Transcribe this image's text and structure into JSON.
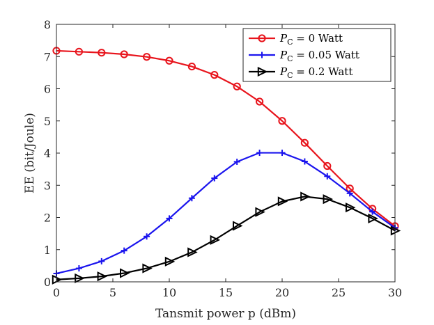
{
  "chart_data": {
    "type": "line",
    "title": "",
    "xlabel": "Tansmit power p (dBm)",
    "ylabel": "EE (bit/Joule)",
    "xlim": [
      0,
      30
    ],
    "ylim": [
      0,
      8
    ],
    "xticks": [
      0,
      5,
      10,
      15,
      20,
      25,
      30
    ],
    "yticks": [
      0,
      1,
      2,
      3,
      4,
      5,
      6,
      7,
      8
    ],
    "grid": false,
    "legend_position": "top-right",
    "x": [
      0,
      2,
      4,
      6,
      8,
      10,
      12,
      14,
      16,
      18,
      20,
      22,
      24,
      26,
      28,
      30
    ],
    "series": [
      {
        "name": "P_C = 0 Watt",
        "legend_label": "P C = 0 Watt",
        "color": "#e8141c",
        "marker": "circle",
        "values": [
          7.18,
          7.15,
          7.12,
          7.07,
          6.99,
          6.87,
          6.69,
          6.43,
          6.07,
          5.6,
          5.0,
          4.32,
          3.6,
          2.9,
          2.27,
          1.73
        ]
      },
      {
        "name": "P_C = 0.05 Watt",
        "legend_label": "P C = 0.05 Watt",
        "color": "#1a14ee",
        "marker": "plus",
        "values": [
          0.26,
          0.42,
          0.64,
          0.97,
          1.41,
          1.97,
          2.6,
          3.22,
          3.73,
          4.01,
          4.01,
          3.74,
          3.28,
          2.75,
          2.18,
          1.68
        ]
      },
      {
        "name": "P_C = 0.2 Watt",
        "legend_label": "P C = 0.2 Watt",
        "color": "#000000",
        "marker": "triangle-right",
        "values": [
          0.07,
          0.11,
          0.17,
          0.27,
          0.42,
          0.63,
          0.92,
          1.3,
          1.74,
          2.17,
          2.5,
          2.65,
          2.57,
          2.31,
          1.97,
          1.59
        ]
      }
    ]
  }
}
